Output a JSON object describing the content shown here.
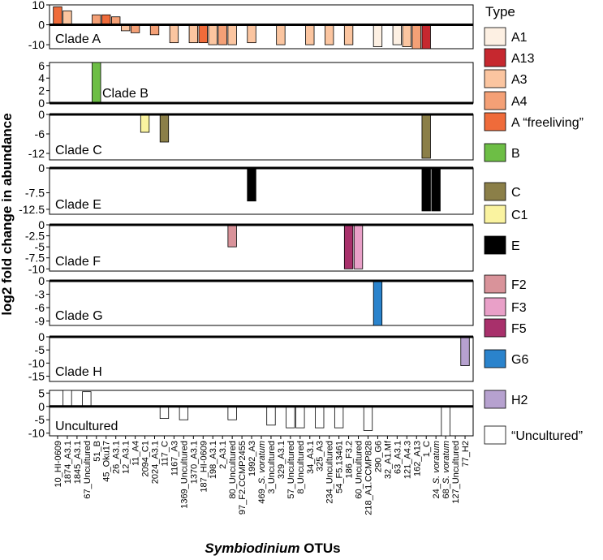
{
  "chart_data": {
    "type": "bar",
    "ylabel": "log2 fold change in abundance",
    "xlabel_italic": "Symbiodinium",
    "xlabel_rest": " OTUs",
    "categories": [
      "10_HI-0609",
      "1874_A3.1",
      "1845_A3.1",
      "67_Uncultured",
      "51_B",
      "45_Oku17",
      "26_A3.1",
      "12_A3.1",
      "11_A4",
      "2094_C1",
      "2024_A3.1",
      "117_C",
      "1167_A3",
      "1369_Uncultured",
      "1370_A3.1",
      "187_HI-0609",
      "198_A3.1",
      "2_A3.1",
      "80_Uncultured",
      "97_F2.CCMP2455",
      "1992_A3",
      "469_S. voratum",
      "3_Uncultured",
      "329_A3.1",
      "57_Uncultured",
      "8_Uncultured",
      "34_A3.1",
      "325_A3",
      "234_Uncultured",
      "54_F5.13461",
      "186_F3.2",
      "60_Uncultured",
      "218_A1.CCMP828",
      "290_G6",
      "32_A1.Mf",
      "63_A3.1",
      "121_A4.3",
      "162_A13",
      "1_C",
      "24_S. voratum",
      "68_S. voratum",
      "127_Uncultured",
      "77_H2"
    ],
    "panels": [
      {
        "label": "Clade A",
        "ylim": [
          -12,
          10
        ],
        "ticks": [
          10,
          0,
          -10
        ],
        "bars": [
          {
            "cat": 0,
            "value": 9,
            "type": "A “freeliving”"
          },
          {
            "cat": 1,
            "value": 7,
            "type": "A3"
          },
          {
            "cat": 4,
            "value": 5,
            "type": "A4"
          },
          {
            "cat": 5,
            "value": 5,
            "type": "A “freeliving”"
          },
          {
            "cat": 6,
            "value": 4,
            "type": "A4"
          },
          {
            "cat": 7,
            "value": -3,
            "type": "A3"
          },
          {
            "cat": 8,
            "value": -4,
            "type": "A4"
          },
          {
            "cat": 10,
            "value": -5,
            "type": "A4"
          },
          {
            "cat": 12,
            "value": -9,
            "type": "A3"
          },
          {
            "cat": 14,
            "value": -9,
            "type": "A3"
          },
          {
            "cat": 15,
            "value": -9,
            "type": "A “freeliving”"
          },
          {
            "cat": 16,
            "value": -10,
            "type": "A3"
          },
          {
            "cat": 17,
            "value": -10,
            "type": "A4"
          },
          {
            "cat": 18,
            "value": -10,
            "type": "A3"
          },
          {
            "cat": 20,
            "value": -9,
            "type": "A3"
          },
          {
            "cat": 23,
            "value": -10,
            "type": "A3"
          },
          {
            "cat": 26,
            "value": -10,
            "type": "A3"
          },
          {
            "cat": 28,
            "value": -10,
            "type": "A3"
          },
          {
            "cat": 30,
            "value": -10,
            "type": "A3"
          },
          {
            "cat": 33,
            "value": -11,
            "type": "A1"
          },
          {
            "cat": 35,
            "value": -10,
            "type": "A1"
          },
          {
            "cat": 36,
            "value": -11,
            "type": "A3"
          },
          {
            "cat": 37,
            "value": -12,
            "type": "A4"
          },
          {
            "cat": 38,
            "value": -12,
            "type": "A13"
          }
        ]
      },
      {
        "label": "Clade B",
        "ylim": [
          0,
          6.5
        ],
        "ticks": [
          6,
          4,
          2,
          0
        ],
        "bars": [
          {
            "cat": 4,
            "value": 6.5,
            "type": "B"
          }
        ]
      },
      {
        "label": "Clade C",
        "ylim": [
          -14,
          0
        ],
        "ticks": [
          0,
          -6,
          -12
        ],
        "bars": [
          {
            "cat": 9,
            "value": -5.5,
            "type": "C1"
          },
          {
            "cat": 11,
            "value": -8.5,
            "type": "C"
          },
          {
            "cat": 38,
            "value": -13.5,
            "type": "C"
          }
        ]
      },
      {
        "label": "Clade E",
        "ylim": [
          -14,
          0
        ],
        "ticks": [
          0,
          -7.5,
          -12.5
        ],
        "bars": [
          {
            "cat": 20,
            "value": -10,
            "type": "E"
          },
          {
            "cat": 38,
            "value": -13,
            "type": "E"
          },
          {
            "cat": 39,
            "value": -13,
            "type": "E"
          }
        ]
      },
      {
        "label": "Clade F",
        "ylim": [
          -10.5,
          0
        ],
        "ticks": [
          0,
          -2.5,
          -5,
          -7.5,
          -10
        ],
        "bars": [
          {
            "cat": 18,
            "value": -5,
            "type": "F2"
          },
          {
            "cat": 30,
            "value": -10,
            "type": "F5"
          },
          {
            "cat": 31,
            "value": -10,
            "type": "F3"
          }
        ]
      },
      {
        "label": "Clade G",
        "ylim": [
          -10,
          0
        ],
        "ticks": [
          0,
          -3,
          -6,
          -9
        ],
        "bars": [
          {
            "cat": 33,
            "value": -10,
            "type": "G6"
          }
        ]
      },
      {
        "label": "Clade H",
        "ylim": [
          -17,
          0
        ],
        "ticks": [
          0,
          -5,
          -10,
          -15
        ],
        "bars": [
          {
            "cat": 42,
            "value": -11,
            "type": "H2"
          }
        ]
      },
      {
        "label": "Uncultured",
        "ylim": [
          -11,
          6
        ],
        "ticks": [
          5,
          0,
          -5,
          -10
        ],
        "bars": [
          {
            "cat": 1,
            "value": 6,
            "type": "“Uncultured”"
          },
          {
            "cat": 3,
            "value": 5.5,
            "type": "“Uncultured”"
          },
          {
            "cat": 11,
            "value": -4.5,
            "type": "“Uncultured”"
          },
          {
            "cat": 13,
            "value": -5,
            "type": "“Uncultured”"
          },
          {
            "cat": 18,
            "value": -5,
            "type": "“Uncultured”"
          },
          {
            "cat": 22,
            "value": -7,
            "type": "“Uncultured”"
          },
          {
            "cat": 24,
            "value": -8,
            "type": "“Uncultured”"
          },
          {
            "cat": 25,
            "value": -8,
            "type": "“Uncultured”"
          },
          {
            "cat": 27,
            "value": -8,
            "type": "“Uncultured”"
          },
          {
            "cat": 29,
            "value": -8,
            "type": "“Uncultured”"
          },
          {
            "cat": 32,
            "value": -9,
            "type": "“Uncultured”"
          },
          {
            "cat": 40,
            "value": -11,
            "type": "“Uncultured”"
          }
        ]
      }
    ],
    "legend": {
      "title": "Type",
      "position": "right",
      "entries": [
        {
          "label": "A1",
          "color": "#fdf0e3"
        },
        {
          "label": "A13",
          "color": "#c6282f"
        },
        {
          "label": "A3",
          "color": "#fbc5a0"
        },
        {
          "label": "A4",
          "color": "#f4a076"
        },
        {
          "label": "A “freeliving”",
          "color": "#ef6b3a"
        },
        {
          "label": "B",
          "color": "#6dbe45"
        },
        {
          "label": "C",
          "color": "#8b7f48"
        },
        {
          "label": "C1",
          "color": "#faf3a0"
        },
        {
          "label": "E",
          "color": "#000000"
        },
        {
          "label": "F2",
          "color": "#d9939a"
        },
        {
          "label": "F3",
          "color": "#e9a0c8"
        },
        {
          "label": "F5",
          "color": "#a8306b"
        },
        {
          "label": "G6",
          "color": "#2a83cc"
        },
        {
          "label": "H2",
          "color": "#b6a1cf"
        },
        {
          "label": "“Uncultured”",
          "color": "#ffffff"
        }
      ]
    }
  }
}
